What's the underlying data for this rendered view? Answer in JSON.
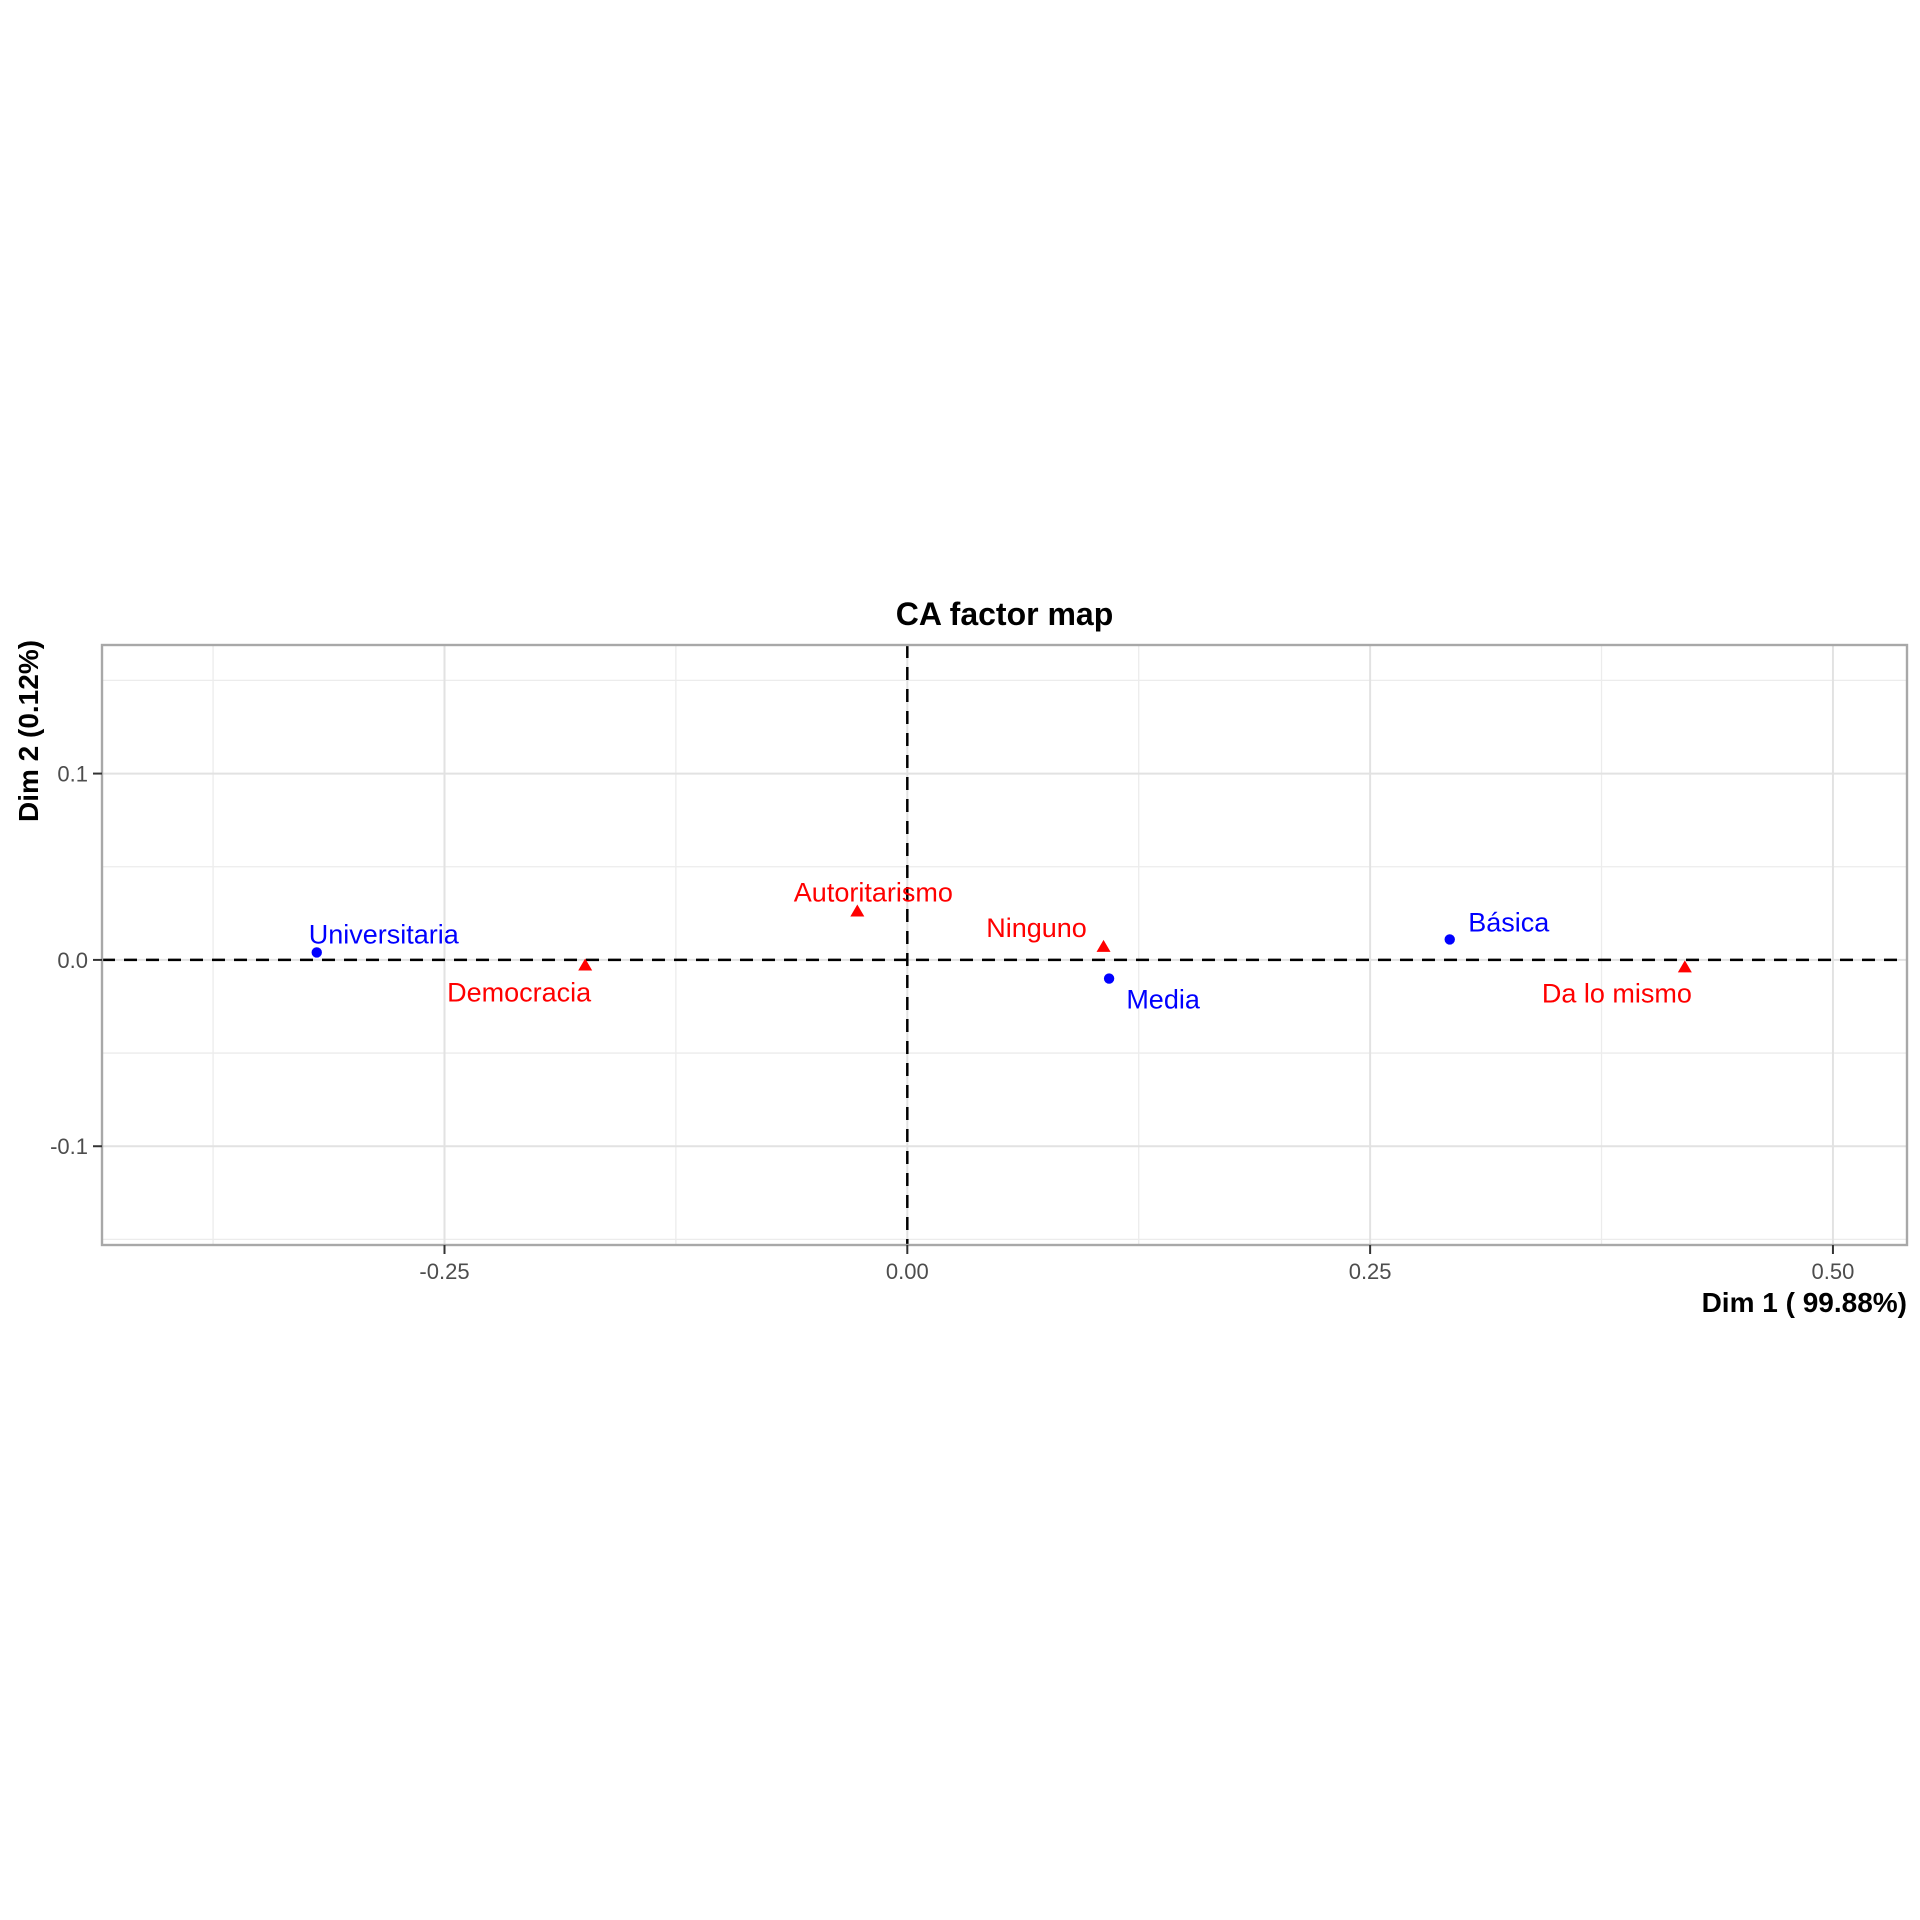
{
  "chart_data": {
    "type": "scatter",
    "title": "CA factor map",
    "xlabel": "Dim 1 ( 99.88%)",
    "ylabel": "Dim 2 (0.12%)",
    "xlim": [
      -0.435,
      0.54
    ],
    "ylim": [
      -0.153,
      0.169
    ],
    "grid": true,
    "x_ticks": [
      {
        "value": -0.25,
        "label": "-0.25"
      },
      {
        "value": 0.0,
        "label": "0.00"
      },
      {
        "value": 0.25,
        "label": "0.25"
      },
      {
        "value": 0.5,
        "label": "0.50"
      }
    ],
    "y_ticks": [
      {
        "value": -0.1,
        "label": "-0.1"
      },
      {
        "value": 0.0,
        "label": "0.0"
      },
      {
        "value": 0.1,
        "label": "0.1"
      }
    ],
    "x_minor": [
      -0.375,
      -0.125,
      0.125,
      0.375
    ],
    "y_minor": [
      -0.15,
      -0.05,
      0.05,
      0.15
    ],
    "reference_lines": {
      "horizontal_y": 0,
      "vertical_x": 0,
      "style": "dashed",
      "color": "#000000"
    },
    "colors": {
      "rows": "#0000ff",
      "columns": "#ff0000",
      "tick_text": "#4d4d4d",
      "grid_major": "#e2e2e2",
      "grid_minor": "#ececec",
      "panel_border": "#a8a8a8",
      "tick_mark": "#333333",
      "title_text": "#000000"
    },
    "series": [
      {
        "name": "rows",
        "marker": "circle",
        "color": "#0000ff",
        "points": [
          {
            "label": "Universitaria",
            "x": -0.319,
            "y": 0.004,
            "label_dx": 67,
            "label_dy": -18
          },
          {
            "label": "Media",
            "x": 0.109,
            "y": -0.01,
            "label_dx": 54,
            "label_dy": 21
          },
          {
            "label": "Básica",
            "x": 0.293,
            "y": 0.011,
            "label_dx": 59,
            "label_dy": -17
          }
        ]
      },
      {
        "name": "columns",
        "marker": "triangle",
        "color": "#ff0000",
        "points": [
          {
            "label": "Democracia",
            "x": -0.174,
            "y": -0.003,
            "label_dx": -66,
            "label_dy": 27
          },
          {
            "label": "Autoritarismo",
            "x": -0.027,
            "y": 0.026,
            "label_dx": 16,
            "label_dy": -19
          },
          {
            "label": "Ninguno",
            "x": 0.106,
            "y": 0.007,
            "label_dx": -67,
            "label_dy": -19
          },
          {
            "label": "Da lo mismo",
            "x": 0.42,
            "y": -0.004,
            "label_dx": -68,
            "label_dy": 26
          }
        ]
      }
    ]
  }
}
